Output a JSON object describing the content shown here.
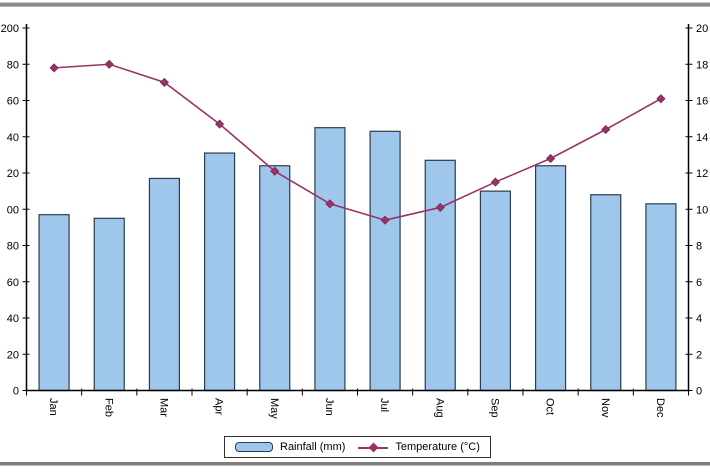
{
  "legend": {
    "rainfall_label": "Rainfall (mm)",
    "temperature_label": "Temperature (°C)"
  },
  "axes": {
    "left": {
      "displayed_tick_labels": [
        "200",
        "80",
        "60",
        "40",
        "20",
        "00",
        "80",
        "60",
        "40",
        "20",
        "0"
      ]
    },
    "right": {
      "displayed_tick_labels": [
        "20",
        "18",
        "16",
        "14",
        "12",
        "10",
        "8",
        "6",
        "4",
        "2",
        "0"
      ]
    }
  },
  "colors": {
    "bar_fill": "#9FC7EC",
    "bar_border": "#2B3D4F",
    "line": "#993366",
    "marker": "#993366",
    "marker_edge": "#7A2951",
    "axis": "#000000",
    "frame": "#808080",
    "legend_border": "#333333"
  },
  "chart_data": {
    "type": "bar",
    "subtype": "combo bar+line climate chart",
    "categories": [
      "Jan",
      "Feb",
      "Mar",
      "Apr",
      "May",
      "Jun",
      "Jul",
      "Aug",
      "Sep",
      "Oct",
      "Nov",
      "Dec"
    ],
    "series": [
      {
        "name": "Rainfall (mm)",
        "type": "bar",
        "y_axis": "left",
        "values": [
          97,
          95,
          117,
          131,
          124,
          145,
          143,
          127,
          110,
          124,
          108,
          103
        ]
      },
      {
        "name": "Temperature (°C)",
        "type": "line",
        "y_axis": "right",
        "marker": "diamond",
        "values": [
          17.8,
          18.0,
          17.0,
          14.7,
          12.1,
          10.3,
          9.4,
          10.1,
          11.5,
          12.8,
          14.4,
          16.1
        ]
      }
    ],
    "title": "",
    "xlabel": "",
    "left_axis": {
      "ylabel": "",
      "ylim": [
        0,
        200
      ],
      "step": 20
    },
    "right_axis": {
      "ylabel": "",
      "ylim": [
        0,
        20
      ],
      "step": 2
    },
    "grid": false,
    "legend_position": "bottom-center",
    "x_tick_label_rotation_deg": 90
  }
}
